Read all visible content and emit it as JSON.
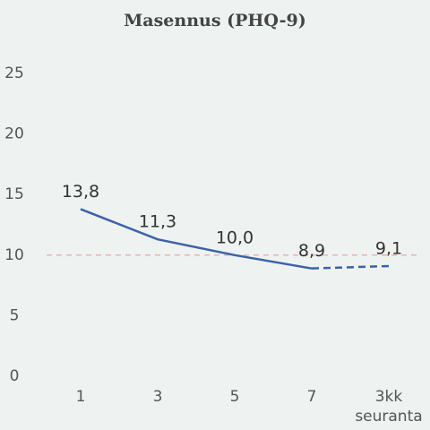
{
  "chart_data": {
    "type": "line",
    "title": "Masennus (PHQ-9)",
    "categories": [
      "1",
      "3",
      "5",
      "7",
      "3kk seuranta"
    ],
    "series": [
      {
        "color": "#3b62a8",
        "values": [
          13.8,
          11.3,
          10.0,
          8.9,
          9.1
        ],
        "value_labels": [
          "13,8",
          "11,3",
          "10,0",
          "8,9",
          "9,1"
        ],
        "dashed_from_index": 3
      }
    ],
    "reference_line": {
      "value": 10,
      "color": "#f0b0b0"
    },
    "ylim": [
      0,
      25
    ],
    "yticks": [
      0,
      5,
      10,
      15,
      20,
      25
    ],
    "grid": false
  }
}
